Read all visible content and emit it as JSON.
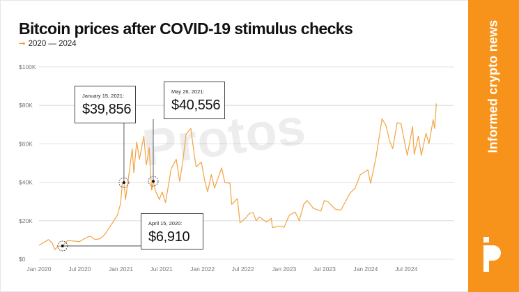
{
  "title": "Bitcoin prices after COVID-19 stimulus checks",
  "subtitle": "2020 — 2024",
  "tagline": "Informed crypto news",
  "watermark": "Protos",
  "colors": {
    "accent": "#f7931a",
    "line": "#f4a340",
    "grid": "#d8d8d8"
  },
  "icons": {
    "arrow": "arrow-right-icon",
    "logo": "protos-logo-icon"
  },
  "chart_data": {
    "type": "line",
    "title": "Bitcoin prices after COVID-19 stimulus checks",
    "subtitle": "2020 — 2024",
    "xlabel": "",
    "ylabel": "",
    "ylim": [
      0,
      100000
    ],
    "xlim": [
      "2020-01-01",
      "2024-12-31"
    ],
    "grid": true,
    "yticks": [
      {
        "value": 0,
        "label": "$0"
      },
      {
        "value": 20000,
        "label": "$20K"
      },
      {
        "value": 40000,
        "label": "$40K"
      },
      {
        "value": 60000,
        "label": "$60K"
      },
      {
        "value": 80000,
        "label": "$80K"
      },
      {
        "value": 100000,
        "label": "$100K"
      }
    ],
    "xticks": [
      {
        "date": "2020-01-01",
        "label": "Jan 2020"
      },
      {
        "date": "2020-07-01",
        "label": "Jul 2020"
      },
      {
        "date": "2021-01-01",
        "label": "Jan 2021"
      },
      {
        "date": "2021-07-01",
        "label": "Jul 2021"
      },
      {
        "date": "2022-01-01",
        "label": "Jan 2022"
      },
      {
        "date": "2022-07-01",
        "label": "Jul 2022"
      },
      {
        "date": "2023-01-01",
        "label": "Jan 2023"
      },
      {
        "date": "2023-07-01",
        "label": "Jul 2023"
      },
      {
        "date": "2024-01-01",
        "label": "Jan 2024"
      },
      {
        "date": "2024-07-01",
        "label": "Jul 2024"
      }
    ],
    "series": [
      {
        "points": [
          [
            "2020-01-01",
            7200
          ],
          [
            "2020-01-20",
            8600
          ],
          [
            "2020-02-12",
            10200
          ],
          [
            "2020-02-28",
            8700
          ],
          [
            "2020-03-12",
            5000
          ],
          [
            "2020-03-25",
            6700
          ],
          [
            "2020-04-15",
            6910
          ],
          [
            "2020-05-08",
            9800
          ],
          [
            "2020-06-01",
            9500
          ],
          [
            "2020-07-01",
            9200
          ],
          [
            "2020-07-28",
            11100
          ],
          [
            "2020-08-17",
            12000
          ],
          [
            "2020-09-08",
            10200
          ],
          [
            "2020-10-01",
            10700
          ],
          [
            "2020-10-21",
            12900
          ],
          [
            "2020-11-05",
            15500
          ],
          [
            "2020-11-25",
            19000
          ],
          [
            "2020-12-17",
            23000
          ],
          [
            "2020-12-31",
            29000
          ],
          [
            "2021-01-08",
            40000
          ],
          [
            "2021-01-15",
            39856
          ],
          [
            "2021-01-22",
            31000
          ],
          [
            "2021-02-08",
            46000
          ],
          [
            "2021-02-21",
            57500
          ],
          [
            "2021-02-28",
            45000
          ],
          [
            "2021-03-13",
            61000
          ],
          [
            "2021-03-25",
            52000
          ],
          [
            "2021-04-14",
            64000
          ],
          [
            "2021-04-25",
            49000
          ],
          [
            "2021-05-08",
            58000
          ],
          [
            "2021-05-19",
            36000
          ],
          [
            "2021-05-26",
            40556
          ],
          [
            "2021-06-05",
            35500
          ],
          [
            "2021-06-22",
            31000
          ],
          [
            "2021-07-05",
            35000
          ],
          [
            "2021-07-20",
            29500
          ],
          [
            "2021-08-14",
            47000
          ],
          [
            "2021-09-06",
            52000
          ],
          [
            "2021-09-21",
            40500
          ],
          [
            "2021-10-05",
            51000
          ],
          [
            "2021-10-20",
            65000
          ],
          [
            "2021-11-10",
            68000
          ],
          [
            "2021-11-26",
            54000
          ],
          [
            "2021-12-04",
            48000
          ],
          [
            "2021-12-27",
            50500
          ],
          [
            "2022-01-10",
            41500
          ],
          [
            "2022-01-24",
            35000
          ],
          [
            "2022-02-10",
            44000
          ],
          [
            "2022-02-24",
            37000
          ],
          [
            "2022-03-28",
            47500
          ],
          [
            "2022-04-11",
            40000
          ],
          [
            "2022-05-04",
            39500
          ],
          [
            "2022-05-12",
            28500
          ],
          [
            "2022-06-06",
            31500
          ],
          [
            "2022-06-18",
            19000
          ],
          [
            "2022-07-10",
            21000
          ],
          [
            "2022-07-30",
            23800
          ],
          [
            "2022-08-15",
            24300
          ],
          [
            "2022-08-30",
            20000
          ],
          [
            "2022-09-12",
            22000
          ],
          [
            "2022-10-15",
            19300
          ],
          [
            "2022-11-05",
            21300
          ],
          [
            "2022-11-10",
            16500
          ],
          [
            "2022-12-15",
            17300
          ],
          [
            "2023-01-01",
            16600
          ],
          [
            "2023-01-25",
            23000
          ],
          [
            "2023-02-20",
            24500
          ],
          [
            "2023-03-10",
            20000
          ],
          [
            "2023-03-30",
            28500
          ],
          [
            "2023-04-14",
            30500
          ],
          [
            "2023-05-12",
            26500
          ],
          [
            "2023-06-15",
            25000
          ],
          [
            "2023-06-30",
            30500
          ],
          [
            "2023-07-15",
            30000
          ],
          [
            "2023-08-18",
            26000
          ],
          [
            "2023-09-12",
            25500
          ],
          [
            "2023-10-24",
            34500
          ],
          [
            "2023-11-15",
            37000
          ],
          [
            "2023-12-08",
            44000
          ],
          [
            "2024-01-11",
            46500
          ],
          [
            "2024-01-23",
            39500
          ],
          [
            "2024-02-15",
            52000
          ],
          [
            "2024-03-05",
            66000
          ],
          [
            "2024-03-14",
            73000
          ],
          [
            "2024-04-01",
            69500
          ],
          [
            "2024-04-17",
            61500
          ],
          [
            "2024-05-01",
            57500
          ],
          [
            "2024-05-21",
            71000
          ],
          [
            "2024-06-07",
            70500
          ],
          [
            "2024-07-05",
            54000
          ],
          [
            "2024-07-29",
            69000
          ],
          [
            "2024-08-05",
            54500
          ],
          [
            "2024-08-24",
            64000
          ],
          [
            "2024-09-06",
            54000
          ],
          [
            "2024-09-27",
            65500
          ],
          [
            "2024-10-10",
            60000
          ],
          [
            "2024-10-29",
            72500
          ],
          [
            "2024-11-05",
            68000
          ],
          [
            "2024-11-12",
            81000
          ]
        ]
      }
    ],
    "annotations": [
      {
        "date": "2020-04-15",
        "value": 6910,
        "date_label": "April 15, 2020:",
        "value_label": "$6,910"
      },
      {
        "date": "2021-01-15",
        "value": 39856,
        "date_label": "January 15, 2021:",
        "value_label": "$39,856"
      },
      {
        "date": "2021-05-26",
        "value": 40556,
        "date_label": "May 26, 2021:",
        "value_label": "$40,556"
      }
    ]
  }
}
